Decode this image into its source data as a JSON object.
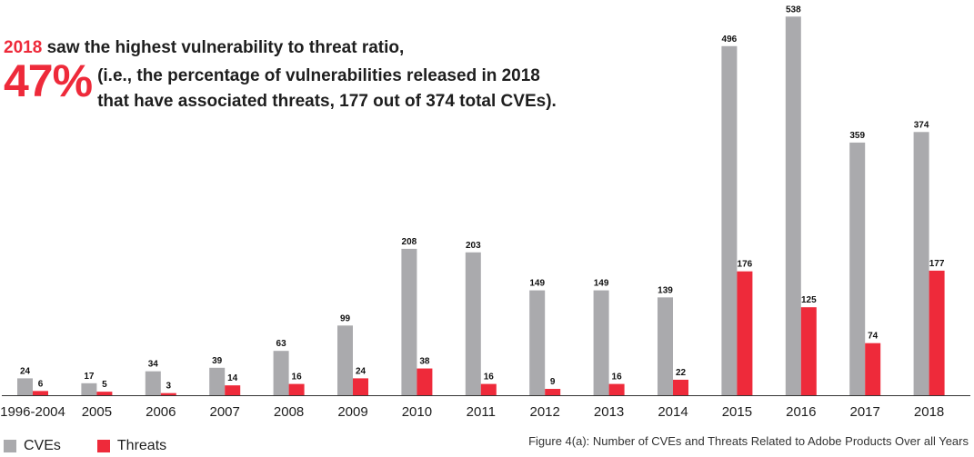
{
  "headline": {
    "year": "2018",
    "line1_rest": "saw the highest vulnerability to threat ratio,",
    "percent": "47%",
    "note_line1": "(i.e., the percentage of vulnerabilities released in 2018",
    "note_line2": "that have associated threats, 177 out of 374 total CVEs)."
  },
  "legend": {
    "cves": "CVEs",
    "threats": "Threats"
  },
  "caption": "Figure 4(a): Number of CVEs and Threats Related to Adobe Products Over all Years",
  "colors": {
    "cves": "#aaaaad",
    "threats": "#ee2a3a",
    "highlight": "#ee2a3a",
    "axis": "#333333"
  },
  "chart_data": {
    "type": "bar",
    "title": "Figure 4(a): Number of CVEs and Threats Related to Adobe Products Over all Years",
    "xlabel": "",
    "ylabel": "",
    "ylim": [
      0,
      560
    ],
    "grid": false,
    "legend_position": "bottom-left",
    "categories": [
      "1996-2004",
      "2005",
      "2006",
      "2007",
      "2008",
      "2009",
      "2010",
      "2011",
      "2012",
      "2013",
      "2014",
      "2015",
      "2016",
      "2017",
      "2018"
    ],
    "series": [
      {
        "name": "CVEs",
        "values": [
          24,
          17,
          34,
          39,
          63,
          99,
          208,
          203,
          149,
          149,
          139,
          496,
          538,
          359,
          374
        ]
      },
      {
        "name": "Threats",
        "values": [
          6,
          5,
          3,
          14,
          16,
          24,
          38,
          16,
          9,
          16,
          22,
          176,
          125,
          74,
          177
        ]
      }
    ]
  }
}
